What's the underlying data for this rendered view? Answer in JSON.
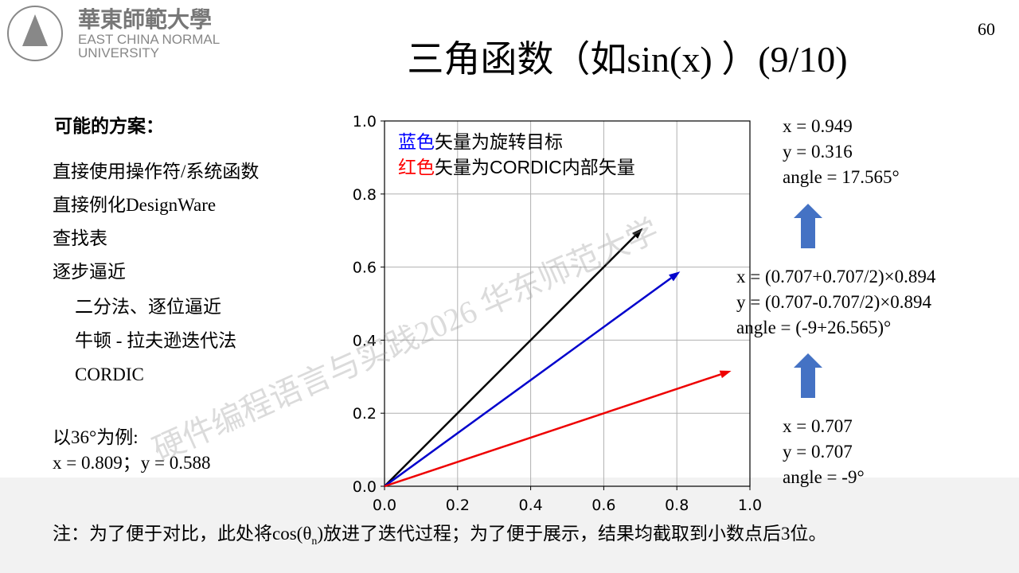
{
  "header": {
    "logo_cn": "華東師範大學",
    "logo_en_1": "EAST CHINA NORMAL",
    "logo_en_2": "UNIVERSITY",
    "page_number": "60",
    "title": "三角函数（如sin(x) ）(9/10)"
  },
  "left": {
    "heading": "可能的方案：",
    "items": [
      "直接使用操作符/系统函数",
      "直接例化DesignWare",
      "查找表",
      "逐步逼近"
    ],
    "sub_items": [
      "二分法、逐位逼近",
      "牛顿 - 拉夫逊迭代法",
      "CORDIC"
    ],
    "example_title": "以36°为例:",
    "example_values": "x = 0.809；y = 0.588"
  },
  "chart_data": {
    "type": "vector",
    "annotations": [
      [
        {
          "text": "蓝色",
          "color": "#0000ff"
        },
        {
          "text": "矢量为旋转目标"
        }
      ],
      [
        {
          "text": "红色",
          "color": "#ff0000"
        },
        {
          "text": "矢量为CORDIC内部矢量"
        }
      ]
    ],
    "series": [
      {
        "color": "#000000",
        "x": [
          0.707
        ],
        "values": [
          0.707
        ]
      },
      {
        "color": "#0000cc",
        "x": [
          0.809
        ],
        "values": [
          0.588
        ]
      },
      {
        "color": "#ee0000",
        "x": [
          0.949
        ],
        "values": [
          0.316
        ]
      }
    ],
    "xlim": [
      0,
      1
    ],
    "ylim": [
      0,
      1
    ],
    "xticks": [
      {
        "value": 0,
        "label": "0.0"
      },
      {
        "value": 0.2,
        "label": "0.2"
      },
      {
        "value": 0.4,
        "label": "0.4"
      },
      {
        "value": 0.6,
        "label": "0.6"
      },
      {
        "value": 0.8,
        "label": "0.8"
      },
      {
        "value": 1,
        "label": "1.0"
      }
    ],
    "yticks": [
      {
        "value": 0,
        "label": "0.0"
      },
      {
        "value": 0.2,
        "label": "0.2"
      },
      {
        "value": 0.4,
        "label": "0.4"
      },
      {
        "value": 0.6,
        "label": "0.6"
      },
      {
        "value": 0.8,
        "label": "0.8"
      },
      {
        "value": 1,
        "label": "1.0"
      }
    ],
    "grid": true
  },
  "right": {
    "top": [
      "x = 0.949",
      "y = 0.316",
      "angle = 17.565°"
    ],
    "middle": [
      "x = (0.707+0.707/2)×0.894",
      "y = (0.707-0.707/2)×0.894",
      "angle = (-9+26.565)°"
    ],
    "bottom": [
      "x = 0.707",
      "y = 0.707",
      "angle = -9°"
    ]
  },
  "footnote": {
    "before": "注：为了便于对比，此处将cos(θ",
    "sub": "n",
    "after": ")放进了迭代过程；为了便于展示，结果均截取到小数点后3位。"
  },
  "watermark": "硬件编程语言与实践2026 华东师范大学"
}
